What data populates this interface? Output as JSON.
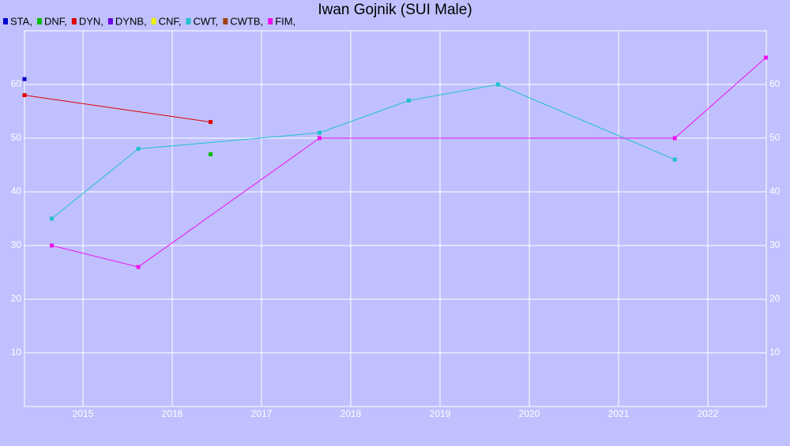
{
  "chart_data": {
    "type": "line",
    "title": "Iwan Gojnik (SUI Male)",
    "xlim": [
      2014.345,
      2022.655
    ],
    "xticks": [
      2015,
      2016,
      2017,
      2018,
      2019,
      2020,
      2021,
      2022
    ],
    "ylim": [
      0,
      70
    ],
    "yticks": [
      10,
      20,
      30,
      40,
      50,
      60
    ],
    "grid": true,
    "legend": "top-left",
    "series": [
      {
        "name": "STA,",
        "color": "#0000cc",
        "x": [
          2014.345
        ],
        "values": [
          61
        ]
      },
      {
        "name": "DNF,",
        "color": "#00bb00",
        "x": [
          2016.43
        ],
        "values": [
          47
        ]
      },
      {
        "name": "DYN,",
        "color": "#e00000",
        "x": [
          2014.345,
          2016.43
        ],
        "values": [
          58,
          53
        ]
      },
      {
        "name": "DYNB,",
        "color": "#6a00e0",
        "x": [],
        "values": []
      },
      {
        "name": "CNF,",
        "color": "#f0f000",
        "x": [],
        "values": []
      },
      {
        "name": "CWT,",
        "color": "#20c0d0",
        "x": [
          2014.65,
          2015.62,
          2017.65,
          2018.65,
          2019.65,
          2021.63
        ],
        "values": [
          35,
          48,
          51,
          57,
          60,
          46
        ]
      },
      {
        "name": "CWTB,",
        "color": "#a04010",
        "x": [],
        "values": []
      },
      {
        "name": "FIM,",
        "color": "#ee10ee",
        "x": [
          2014.65,
          2015.62,
          2017.65,
          2021.63,
          2022.65
        ],
        "values": [
          30,
          26,
          50,
          50,
          65
        ]
      }
    ]
  }
}
